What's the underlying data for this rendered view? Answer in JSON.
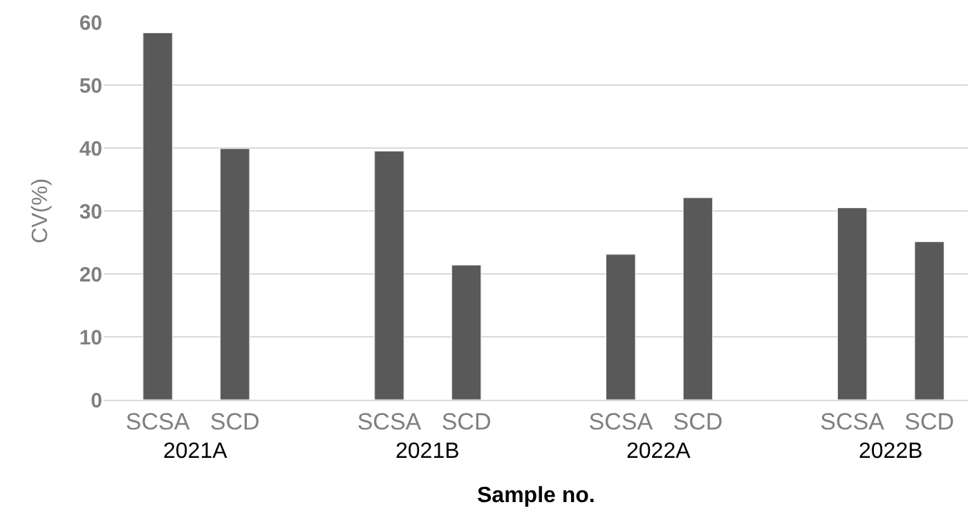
{
  "chart_data": {
    "type": "bar",
    "xlabel": "Sample no.",
    "ylabel": "CV(%)",
    "categories": [
      "SCSA",
      "SCD",
      "SCSA",
      "SCD",
      "SCSA",
      "SCD",
      "SCSA",
      "SCD"
    ],
    "values": [
      58.3,
      39.9,
      39.5,
      21.4,
      23.1,
      32.1,
      30.5,
      25.1
    ],
    "color": "#595959",
    "ylim": [
      0,
      60
    ],
    "yticks": [
      0,
      10,
      20,
      30,
      40,
      50,
      60
    ],
    "grid": "y",
    "annotations": [
      "2021A",
      "2021B",
      "2022A",
      "2022B"
    ]
  }
}
